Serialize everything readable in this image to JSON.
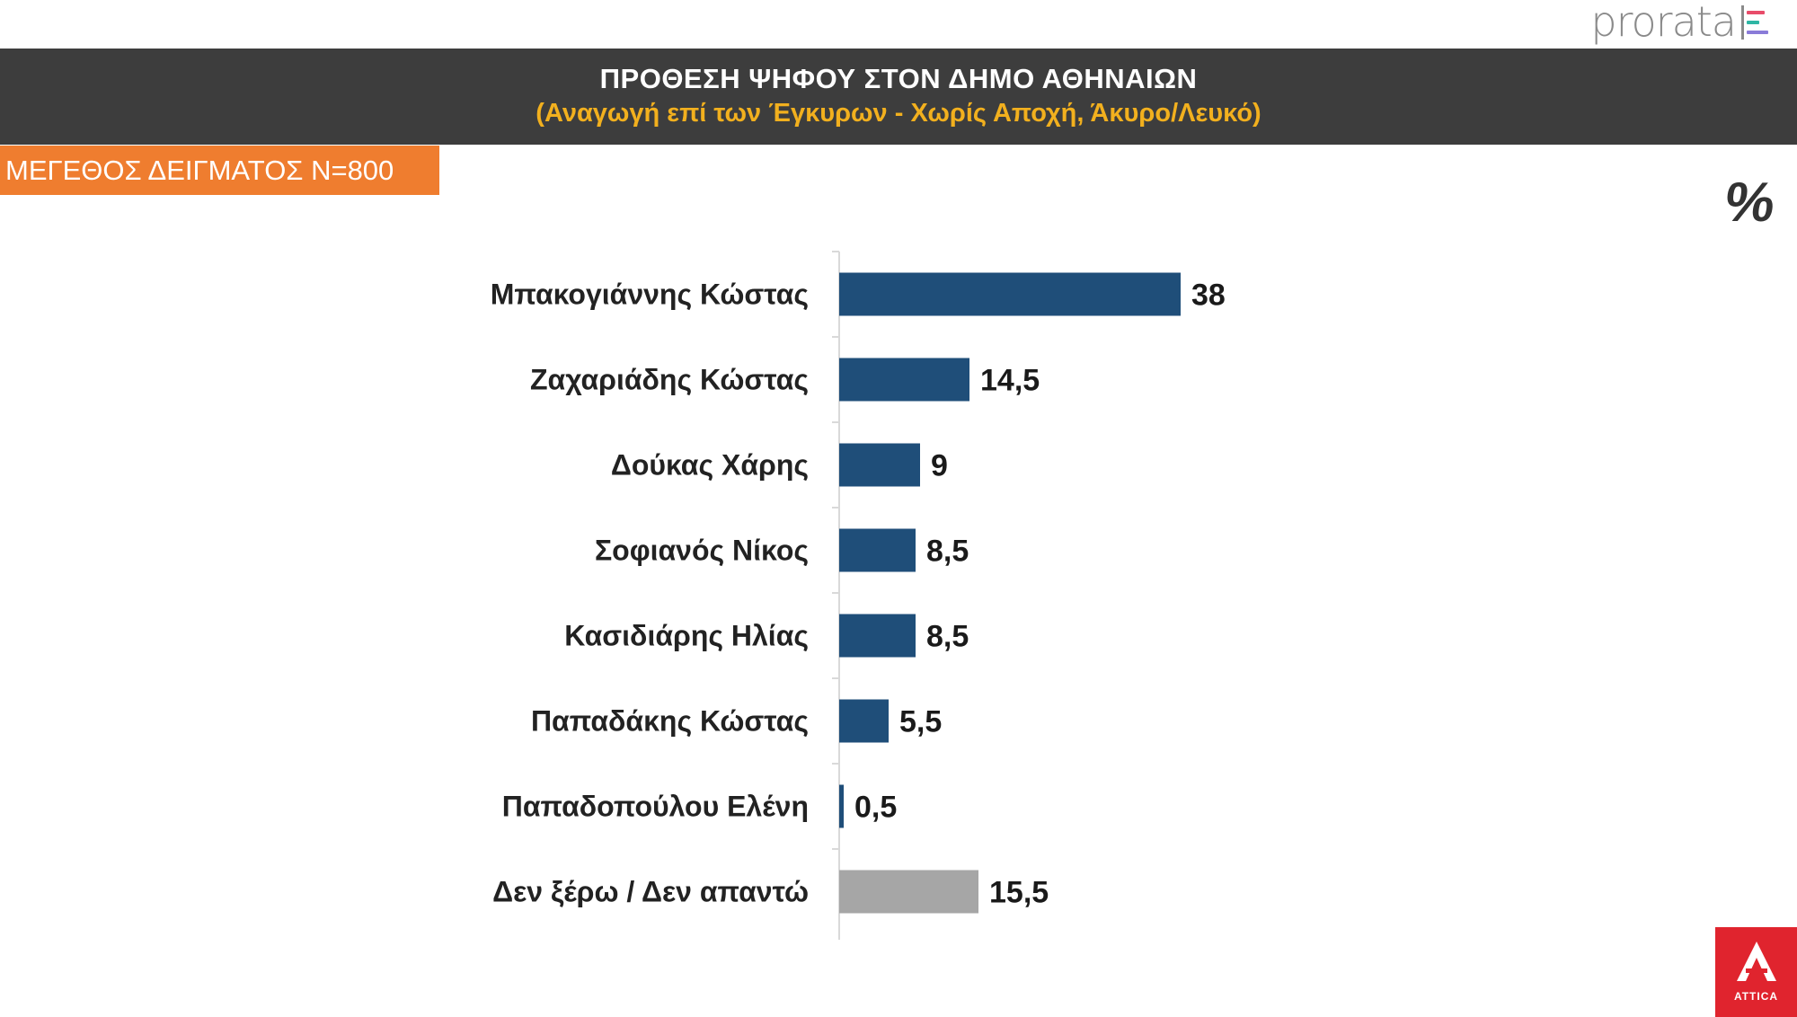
{
  "brand": {
    "logo_text": "prorata",
    "logo_colors": [
      "#e84c6a",
      "#2fb6a4",
      "#8a7bd8"
    ],
    "broadcaster": "ATTICA",
    "broadcaster_color": "#e0242e"
  },
  "header": {
    "title": "ΠΡΟΘΕΣΗ ΨΗΦΟΥ ΣΤΟΝ ΔΗΜΟ ΑΘΗΝΑΙΩΝ",
    "subtitle": "(Αναγωγή επί των Έγκυρων - Χωρίς Αποχή, Άκυρο/Λευκό)"
  },
  "sample_badge": {
    "label": "ΜΕΓΕΘΟΣ ΔΕΙΓΜΑΤΟΣ Ν=800",
    "color": "#ef7d2f"
  },
  "unit_label": "%",
  "chart_data": {
    "type": "bar",
    "orientation": "horizontal",
    "title": "ΠΡΟΘΕΣΗ ΨΗΦΟΥ ΣΤΟΝ ΔΗΜΟ ΑΘΗΝΑΙΩΝ",
    "subtitle": "(Αναγωγή επί των Έγκυρων - Χωρίς Αποχή, Άκυρο/Λευκό)",
    "categories": [
      "Μπακογιάννης Κώστας",
      "Ζαχαριάδης Κώστας",
      "Δούκας Χάρης",
      "Σοφιανός Νίκος",
      "Κασιδιάρης Ηλίας",
      "Παπαδάκης Κώστας",
      "Παπαδοπούλου Ελένη",
      "Δεν ξέρω / Δεν απαντώ"
    ],
    "values": [
      38,
      14.5,
      9,
      8.5,
      8.5,
      5.5,
      0.5,
      15.5
    ],
    "value_labels": [
      "38",
      "14,5",
      "9",
      "8,5",
      "8,5",
      "5,5",
      "0,5",
      "15,5"
    ],
    "bar_colors": [
      "#1f4e79",
      "#1f4e79",
      "#1f4e79",
      "#1f4e79",
      "#1f4e79",
      "#1f4e79",
      "#1f4e79",
      "#a6a6a6"
    ],
    "xlim": [
      0,
      40
    ],
    "grid": false,
    "legend": "none"
  }
}
